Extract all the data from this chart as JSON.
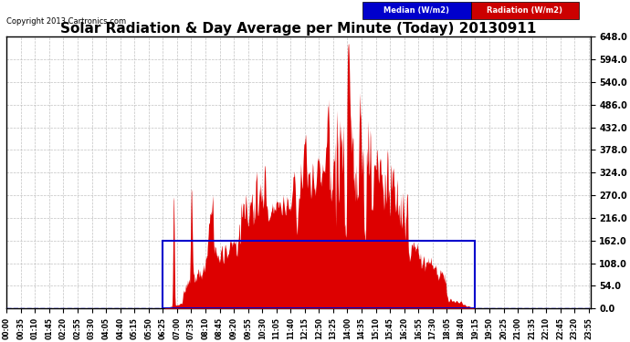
{
  "title": "Solar Radiation & Day Average per Minute (Today) 20130911",
  "copyright": "Copyright 2013 Cartronics.com",
  "ylim": [
    0,
    648
  ],
  "yticks": [
    0.0,
    54.0,
    108.0,
    162.0,
    216.0,
    270.0,
    324.0,
    378.0,
    432.0,
    486.0,
    540.0,
    594.0,
    648.0
  ],
  "median_value": 162.0,
  "legend_median_label": "Median (W/m2)",
  "legend_radiation_label": "Radiation (W/m2)",
  "legend_median_bg": "#0000cc",
  "legend_radiation_bg": "#cc0000",
  "background_color": "#ffffff",
  "grid_color": "#bbbbbb",
  "title_fontsize": 11,
  "radiation_color": "#dd0000",
  "median_line_color": "#0000ee",
  "rect_color": "#0000cc",
  "sunrise_min": 385,
  "sunset_min": 1155,
  "total_points": 1440,
  "xtick_step": 35
}
